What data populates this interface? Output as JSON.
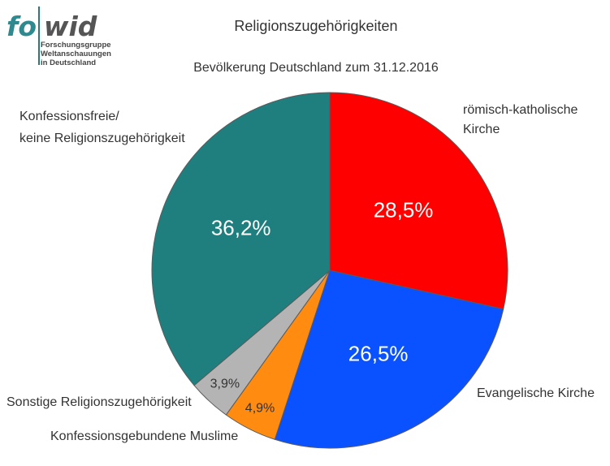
{
  "logo": {
    "letters_primary": "fo",
    "letters_secondary": "wid",
    "line1": "Forschungsgruppe",
    "line2": "Weltanschauungen",
    "line3": "in Deutschland",
    "primary_color": "#2e8a8e",
    "secondary_color": "#555555"
  },
  "chart_data": {
    "type": "pie",
    "title": "Religionszugehörigkeiten",
    "subtitle": "Bevölkerung Deutschland zum 31.12.2016",
    "unit": "%",
    "start_angle_deg": 0,
    "direction": "clockwise",
    "slices": [
      {
        "key": "katholisch",
        "label_lines": [
          "römisch-katholische",
          "Kirche"
        ],
        "value": 28.5,
        "value_label": "28,5%",
        "color": "#ff0000",
        "value_text_color": "#ffffff"
      },
      {
        "key": "evangelisch",
        "label_lines": [
          "Evangelische Kirche"
        ],
        "value": 26.5,
        "value_label": "26,5%",
        "color": "#0a52ff",
        "value_text_color": "#ffffff"
      },
      {
        "key": "muslime",
        "label_lines": [
          "Konfessionsgebundene Muslime"
        ],
        "value": 4.9,
        "value_label": "4,9%",
        "color": "#ff8c10",
        "value_text_color": "#333333"
      },
      {
        "key": "sonstige",
        "label_lines": [
          "Sonstige Religionszugehörigkeit"
        ],
        "value": 3.9,
        "value_label": "3,9%",
        "color": "#b4b4b4",
        "value_text_color": "#333333"
      },
      {
        "key": "konfessionsfrei",
        "label_lines": [
          "Konfessionsfreie/",
          "keine Religionszugehörigkeit"
        ],
        "value": 36.2,
        "value_label": "36,2%",
        "color": "#1f7e7e",
        "value_text_color": "#ffffff"
      }
    ]
  }
}
